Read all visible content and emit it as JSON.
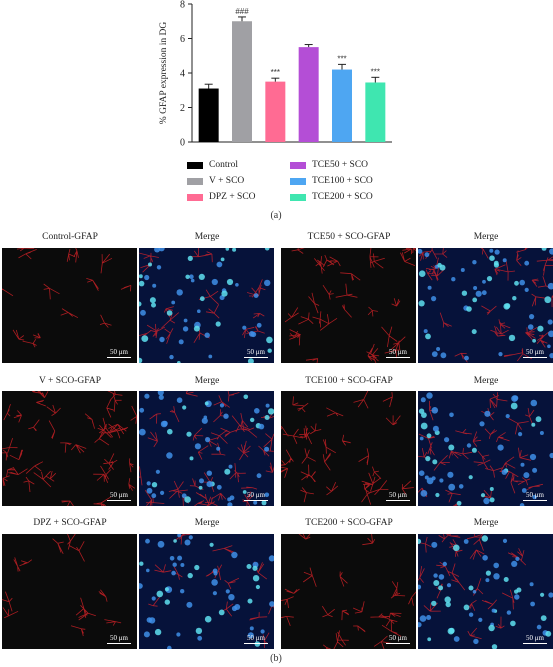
{
  "chart_data": {
    "type": "bar",
    "ylabel": "% GFAP expression in DG",
    "ylim": [
      0,
      8
    ],
    "yticks": [
      "0",
      "2",
      "4",
      "6",
      "8"
    ],
    "categories": [
      "Control",
      "V + SCO",
      "DPZ + SCO",
      "TCE50 + SCO",
      "TCE100 + SCO",
      "TCE200 + SCO"
    ],
    "values": [
      3.1,
      7.0,
      3.5,
      5.5,
      4.2,
      3.45
    ],
    "errors": [
      0.25,
      0.25,
      0.2,
      0.15,
      0.3,
      0.3
    ],
    "annotations": [
      "",
      "###",
      "***",
      "",
      "***",
      "***"
    ],
    "colors": [
      "#000000",
      "#a0a0a4",
      "#ff6b93",
      "#b44ed6",
      "#4ea6f2",
      "#3fe6b0"
    ],
    "grid": false,
    "legend_position": "bottom"
  },
  "captions": {
    "a": "(a)",
    "b": "(b)"
  },
  "panels": [
    {
      "label": "Control-GFAP",
      "scale": "50 μm"
    },
    {
      "label": "Merge",
      "scale": "50 μm"
    },
    {
      "label": "TCE50 + SCO-GFAP",
      "scale": "50 μm"
    },
    {
      "label": "Merge",
      "scale": "50 μm"
    },
    {
      "label": "V + SCO-GFAP",
      "scale": "50 μm"
    },
    {
      "label": "Merge",
      "scale": "50 μm"
    },
    {
      "label": "TCE100 + SCO-GFAP",
      "scale": "50 μm"
    },
    {
      "label": "Merge",
      "scale": "50 μm"
    },
    {
      "label": "DPZ + SCO-GFAP",
      "scale": "50 μm"
    },
    {
      "label": "Merge",
      "scale": "50 μm"
    },
    {
      "label": "TCE200 + SCO-GFAP",
      "scale": "50 μm"
    },
    {
      "label": "Merge",
      "scale": "50 μm"
    }
  ]
}
